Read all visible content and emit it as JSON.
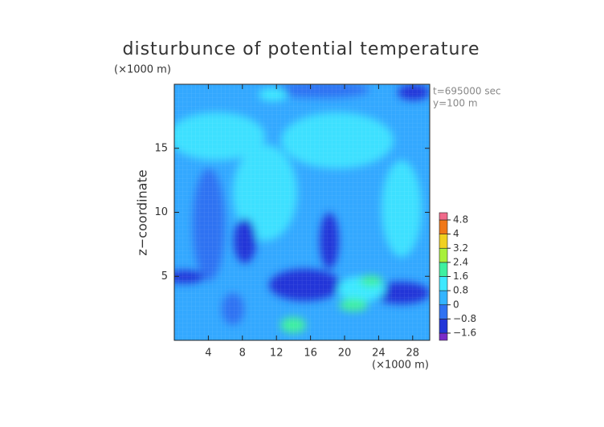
{
  "chart_data": {
    "type": "contour",
    "title": "disturbunce of potential temperature",
    "y_unit_label": "(×1000 m)",
    "x_unit_label": "(×1000 m)",
    "y_label": "z−coordinate",
    "annotations": [
      "t=695000 sec",
      "y=100 m"
    ],
    "xlim": [
      0,
      30
    ],
    "ylim": [
      0,
      20
    ],
    "xticks": [
      4,
      8,
      12,
      16,
      20,
      24,
      28
    ],
    "yticks": [
      5,
      10,
      15
    ],
    "colorbar": {
      "ticks": [
        {
          "value": -1.6,
          "label": "−1.6"
        },
        {
          "value": -0.8,
          "label": "−0.8"
        },
        0,
        0.8,
        1.6,
        2.4,
        3.2,
        4,
        4.8
      ],
      "colors": [
        "#7a2bc8",
        "#2236d8",
        "#2f72f2",
        "#33b4ff",
        "#3ee8ff",
        "#3ff0a0",
        "#a8f03a",
        "#f0d020",
        "#f07818",
        "#f06a8a"
      ]
    }
  }
}
